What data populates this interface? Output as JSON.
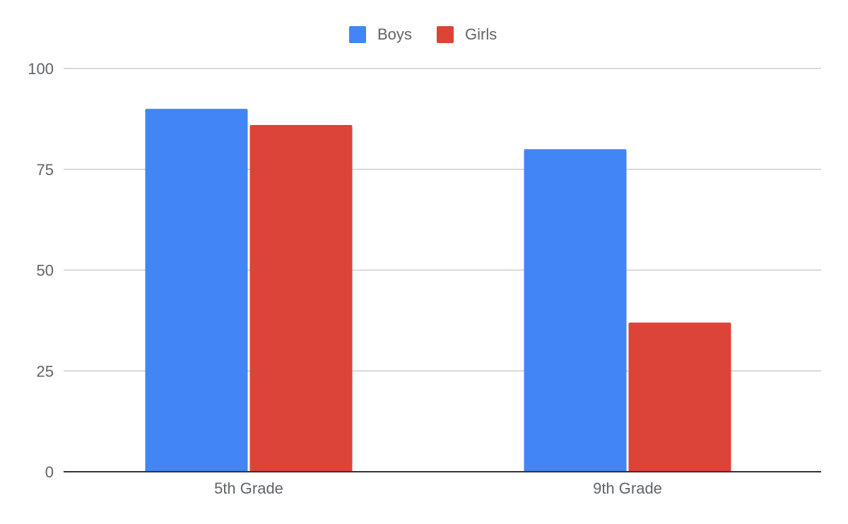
{
  "chart_data": {
    "type": "bar",
    "title": "",
    "xlabel": "",
    "ylabel": "",
    "categories": [
      "5th Grade",
      "9th Grade"
    ],
    "series": [
      {
        "name": "Boys",
        "values": [
          90,
          80
        ],
        "color": "#4285f4"
      },
      {
        "name": "Girls",
        "values": [
          86,
          37
        ],
        "color": "#db4437"
      }
    ],
    "ylim": [
      0,
      100
    ],
    "yticks": [
      "0",
      "25",
      "50",
      "75",
      "100"
    ],
    "grid": true,
    "legend_position": "top"
  }
}
